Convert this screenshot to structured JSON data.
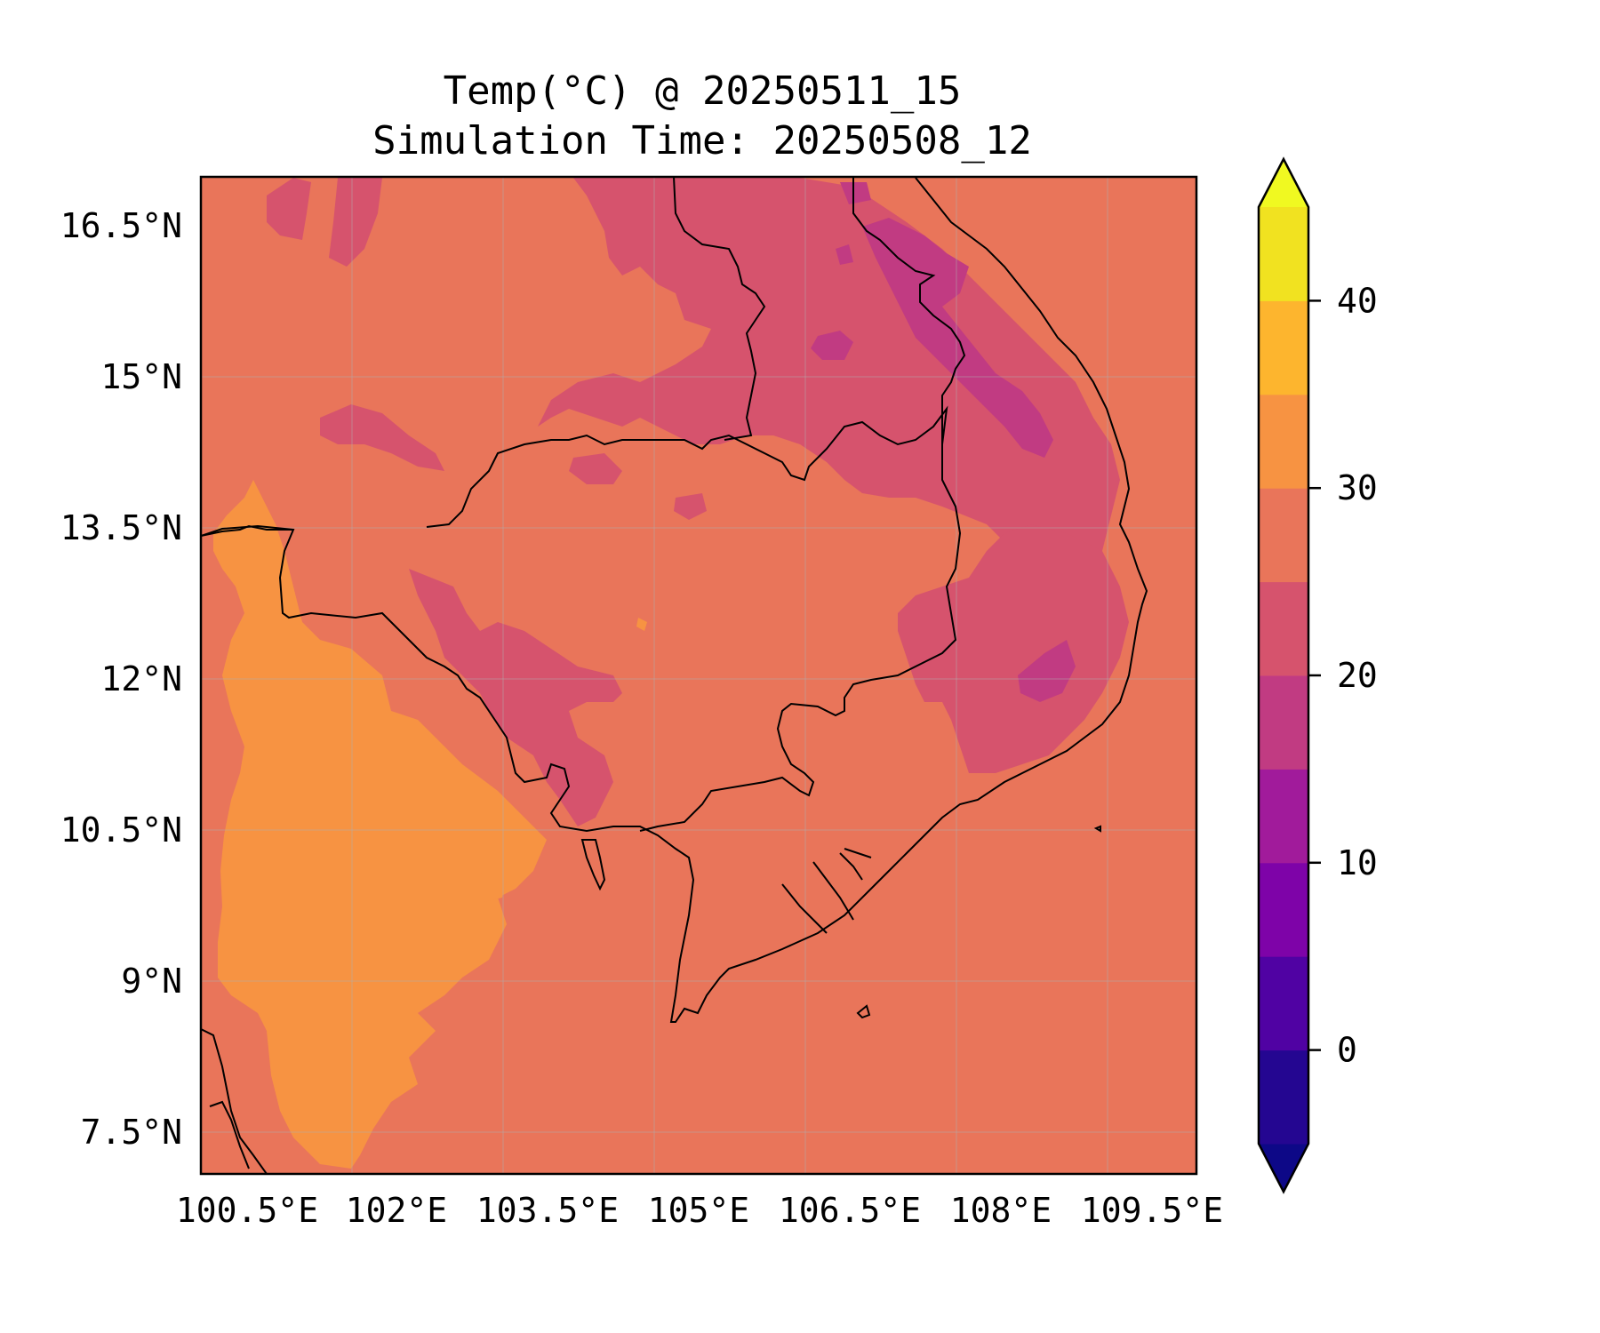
{
  "title": {
    "line1": "Temp(°C) @ 20250511_15",
    "line2": "Simulation Time: 20250508_12"
  },
  "map": {
    "lon_ticks": [
      "100.5°E",
      "102°E",
      "103.5°E",
      "105°E",
      "106.5°E",
      "108°E",
      "109.5°E"
    ],
    "lat_ticks": [
      "16.5°N",
      "15°N",
      "13.5°N",
      "12°N",
      "10.5°N",
      "9°N",
      "7.5°N"
    ],
    "lon_range": [
      100.5,
      110.4
    ],
    "lat_range": [
      7.1,
      17.0
    ],
    "background_temperature_c": 27.5,
    "gridlines": true
  },
  "colorbar": {
    "tick_labels": [
      "40",
      "30",
      "20",
      "10",
      "0"
    ],
    "levels": [
      -5,
      0,
      5,
      10,
      15,
      20,
      25,
      30,
      35,
      40,
      45
    ],
    "extend": "both",
    "colors": [
      "#0d0887",
      "#2a0593",
      "#4c02a1",
      "#7e03a8",
      "#a11b9b",
      "#bd3786",
      "#d8576b",
      "#ec7853",
      "#f89540",
      "#fdb42f",
      "#f0f921"
    ],
    "bin_colors": [
      "#240691",
      "#5002a3",
      "#7e03a8",
      "#a11b9b",
      "#c13b82",
      "#d6536d",
      "#e9755a",
      "#f79342",
      "#fdb52e",
      "#f1e220"
    ]
  }
}
